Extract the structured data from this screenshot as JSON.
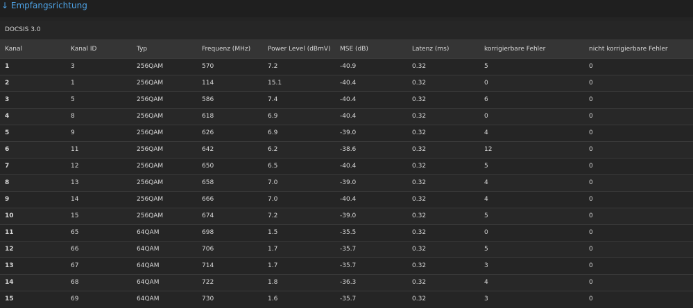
{
  "header": {
    "title": "↓ Empfangsrichtung"
  },
  "table": {
    "caption": "DOCSIS 3.0",
    "columns": [
      "Kanal",
      "Kanal ID",
      "Typ",
      "Frequenz (MHz)",
      "Power Level (dBmV)",
      "MSE (dB)",
      "Latenz (ms)",
      "korrigierbare Fehler",
      "nicht korrigierbare Fehler"
    ],
    "rows": [
      [
        "1",
        "3",
        "256QAM",
        "570",
        "7.2",
        "-40.9",
        "0.32",
        "5",
        "0"
      ],
      [
        "2",
        "1",
        "256QAM",
        "114",
        "15.1",
        "-40.4",
        "0.32",
        "0",
        "0"
      ],
      [
        "3",
        "5",
        "256QAM",
        "586",
        "7.4",
        "-40.4",
        "0.32",
        "6",
        "0"
      ],
      [
        "4",
        "8",
        "256QAM",
        "618",
        "6.9",
        "-40.4",
        "0.32",
        "0",
        "0"
      ],
      [
        "5",
        "9",
        "256QAM",
        "626",
        "6.9",
        "-39.0",
        "0.32",
        "4",
        "0"
      ],
      [
        "6",
        "11",
        "256QAM",
        "642",
        "6.2",
        "-38.6",
        "0.32",
        "12",
        "0"
      ],
      [
        "7",
        "12",
        "256QAM",
        "650",
        "6.5",
        "-40.4",
        "0.32",
        "5",
        "0"
      ],
      [
        "8",
        "13",
        "256QAM",
        "658",
        "7.0",
        "-39.0",
        "0.32",
        "4",
        "0"
      ],
      [
        "9",
        "14",
        "256QAM",
        "666",
        "7.0",
        "-40.4",
        "0.32",
        "4",
        "0"
      ],
      [
        "10",
        "15",
        "256QAM",
        "674",
        "7.2",
        "-39.0",
        "0.32",
        "5",
        "0"
      ],
      [
        "11",
        "65",
        "64QAM",
        "698",
        "1.5",
        "-35.5",
        "0.32",
        "0",
        "0"
      ],
      [
        "12",
        "66",
        "64QAM",
        "706",
        "1.7",
        "-35.7",
        "0.32",
        "5",
        "0"
      ],
      [
        "13",
        "67",
        "64QAM",
        "714",
        "1.7",
        "-35.7",
        "0.32",
        "3",
        "0"
      ],
      [
        "14",
        "68",
        "64QAM",
        "722",
        "1.8",
        "-36.3",
        "0.32",
        "4",
        "0"
      ],
      [
        "15",
        "69",
        "64QAM",
        "730",
        "1.6",
        "-35.7",
        "0.32",
        "3",
        "0"
      ]
    ]
  }
}
